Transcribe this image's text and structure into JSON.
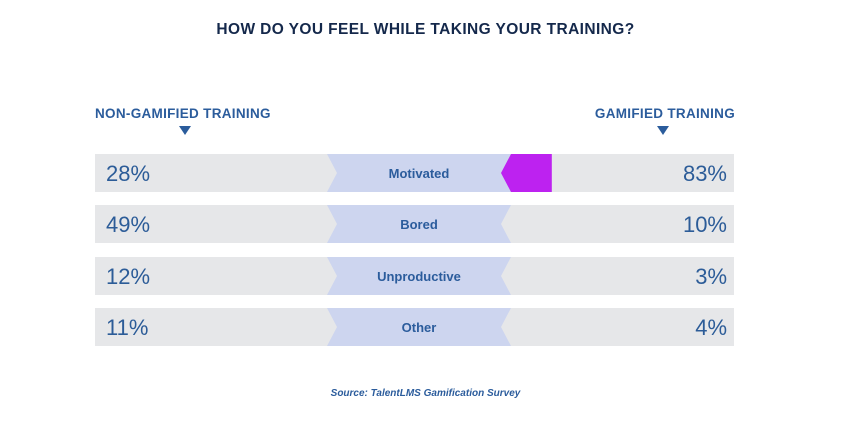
{
  "chart_data": {
    "type": "bar",
    "title": "HOW DO YOU FEEL WHILE TAKING YOUR TRAINING?",
    "left_label": "NON-GAMIFIED TRAINING",
    "right_label": "GAMIFIED TRAINING",
    "categories": [
      "Motivated",
      "Bored",
      "Unproductive",
      "Other"
    ],
    "series": [
      {
        "name": "NON-GAMIFIED TRAINING",
        "values": [
          28,
          49,
          12,
          11
        ],
        "labels": [
          "28%",
          "49%",
          "12%",
          "11%"
        ]
      },
      {
        "name": "GAMIFIED TRAINING",
        "values": [
          83,
          10,
          3,
          4
        ],
        "labels": [
          "83%",
          "10%",
          "3%",
          "4%"
        ]
      }
    ],
    "colors": [
      "#bd22f0",
      "#a4b5c3",
      "#2aa6e1",
      "#1e63b0"
    ],
    "track_color": "#e6e7e9",
    "label_color": "#cdd5ef",
    "xlim": [
      0,
      100
    ]
  },
  "source": "Source: TalentLMS Gamification Survey"
}
